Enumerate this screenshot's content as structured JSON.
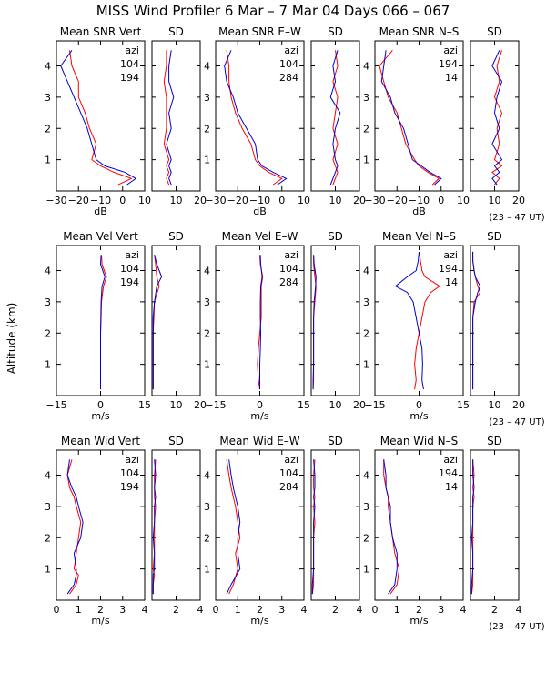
{
  "title": "MISS Wind Profiler    6 Mar –  7 Mar 04 Days 066 – 067",
  "ylabel": "Altitude (km)",
  "time_note": "(23 – 47 UT)",
  "legend_header": "azi",
  "colors": {
    "series_a": "#ff0000",
    "series_b": "#0000cc",
    "axes": "#000000"
  },
  "y_ticks": [
    "1",
    "2",
    "3",
    "4"
  ],
  "chart_data": [
    {
      "type": "line",
      "row": 0,
      "col": 0,
      "kind": "mean",
      "title": "Mean SNR Vert",
      "sd_title": "SD",
      "xlabel": "dB",
      "xlim": [
        -30,
        10
      ],
      "sd_xlim": [
        0,
        20
      ],
      "ylim": [
        0,
        4.8
      ],
      "x_ticks": [
        -30,
        -20,
        -10,
        0,
        10
      ],
      "x_tick_labels": [
        "−30",
        "−20",
        "−10",
        "0",
        "10"
      ],
      "sd_ticks": [
        10,
        20
      ],
      "sd_tick_labels": [
        "10",
        "20"
      ],
      "azimuths": [
        "104",
        "194"
      ],
      "altitude": [
        0.2,
        0.4,
        0.6,
        0.8,
        1.0,
        1.5,
        2.0,
        2.5,
        3.0,
        3.5,
        4.0,
        4.5
      ],
      "series": [
        {
          "name": "104",
          "mean": [
            -2,
            4,
            -4,
            -10,
            -14,
            -12,
            -15,
            -17,
            -20,
            -20,
            -23,
            -24
          ],
          "sd": [
            7,
            6,
            7,
            6,
            7,
            5,
            6,
            6,
            6,
            5,
            6,
            6
          ]
        },
        {
          "name": "194",
          "mean": [
            2,
            6,
            1,
            -8,
            -12,
            -14,
            -16,
            -19,
            -22,
            -25,
            -28,
            -23
          ],
          "sd": [
            8,
            7,
            8,
            7,
            8,
            6,
            8,
            7,
            9,
            7,
            7,
            8
          ]
        }
      ]
    },
    {
      "type": "line",
      "row": 0,
      "col": 1,
      "kind": "mean",
      "title": "Mean SNR E–W",
      "sd_title": "SD",
      "xlabel": "dB",
      "xlim": [
        -30,
        10
      ],
      "sd_xlim": [
        0,
        20
      ],
      "ylim": [
        0,
        4.8
      ],
      "x_ticks": [
        -30,
        -20,
        -10,
        0,
        10
      ],
      "x_tick_labels": [
        "−30",
        "−20",
        "−10",
        "0",
        "10"
      ],
      "sd_ticks": [
        10,
        20
      ],
      "sd_tick_labels": [
        "10",
        "20"
      ],
      "azimuths": [
        "104",
        "284"
      ],
      "altitude": [
        0.2,
        0.4,
        0.6,
        0.8,
        1.0,
        1.5,
        2.0,
        2.5,
        3.0,
        3.5,
        4.0,
        4.5
      ],
      "series": [
        {
          "name": "104",
          "mean": [
            -4,
            0,
            -6,
            -10,
            -12,
            -14,
            -18,
            -21,
            -23,
            -24,
            -24,
            -25
          ],
          "sd": [
            9,
            10,
            11,
            10,
            9,
            11,
            9,
            10,
            11,
            9,
            11,
            10
          ]
        },
        {
          "name": "284",
          "mean": [
            -2,
            2,
            -4,
            -9,
            -11,
            -12,
            -16,
            -20,
            -22,
            -25,
            -26,
            -23
          ],
          "sd": [
            8,
            9,
            10,
            11,
            10,
            9,
            10,
            12,
            8,
            10,
            9,
            11
          ]
        }
      ]
    },
    {
      "type": "line",
      "row": 0,
      "col": 2,
      "kind": "mean",
      "title": "Mean SNR N–S",
      "sd_title": "SD",
      "xlabel": "dB",
      "xlim": [
        -30,
        10
      ],
      "sd_xlim": [
        0,
        20
      ],
      "ylim": [
        0,
        4.8
      ],
      "x_ticks": [
        -30,
        -20,
        -10,
        0,
        10
      ],
      "x_tick_labels": [
        "−30",
        "−20",
        "−10",
        "0",
        "10"
      ],
      "sd_ticks": [
        10,
        20
      ],
      "sd_tick_labels": [
        "10",
        "20"
      ],
      "azimuths": [
        "194",
        "14"
      ],
      "altitude": [
        0.2,
        0.4,
        0.6,
        0.8,
        1.0,
        1.5,
        2.0,
        2.5,
        3.0,
        3.5,
        4.0,
        4.5
      ],
      "series": [
        {
          "name": "194",
          "mean": [
            -4,
            -1,
            -6,
            -10,
            -12,
            -16,
            -18,
            -20,
            -24,
            -26,
            -28,
            -22
          ],
          "sd": [
            10,
            12,
            9,
            13,
            10,
            12,
            11,
            13,
            10,
            12,
            11,
            13
          ]
        },
        {
          "name": "14",
          "mean": [
            -3,
            0,
            -5,
            -9,
            -13,
            -15,
            -17,
            -21,
            -23,
            -27,
            -26,
            -25
          ],
          "sd": [
            11,
            9,
            12,
            10,
            13,
            9,
            12,
            10,
            11,
            13,
            9,
            12
          ]
        }
      ]
    },
    {
      "type": "line",
      "row": 1,
      "col": 0,
      "kind": "mean",
      "title": "Mean Vel Vert",
      "sd_title": "SD",
      "xlabel": "m/s",
      "xlim": [
        -15,
        15
      ],
      "sd_xlim": [
        0,
        20
      ],
      "ylim": [
        0,
        4.8
      ],
      "x_ticks": [
        -15,
        0,
        15
      ],
      "x_tick_labels": [
        "−15",
        "0",
        "15"
      ],
      "sd_ticks": [
        10,
        20
      ],
      "sd_tick_labels": [
        "10",
        "20"
      ],
      "azimuths": [
        "104",
        "194"
      ],
      "altitude": [
        0.2,
        0.5,
        1.0,
        1.5,
        2.0,
        2.5,
        3.0,
        3.5,
        3.8,
        4.2,
        4.5
      ],
      "series": [
        {
          "name": "104",
          "mean": [
            0,
            0,
            0,
            0,
            0,
            0.2,
            0.3,
            1,
            2,
            0.5,
            0.3
          ],
          "sd": [
            0.5,
            0.5,
            0.5,
            0.5,
            0.5,
            0.8,
            1,
            3,
            2,
            1.5,
            1
          ]
        },
        {
          "name": "194",
          "mean": [
            0,
            0,
            0,
            0,
            0,
            0.1,
            0.2,
            0.5,
            1.5,
            0,
            0.2
          ],
          "sd": [
            0.5,
            0.5,
            0.5,
            0.5,
            0.5,
            0.5,
            1,
            2,
            4,
            2,
            1
          ]
        }
      ]
    },
    {
      "type": "line",
      "row": 1,
      "col": 1,
      "kind": "mean",
      "title": "Mean Vel E–W",
      "sd_title": "SD",
      "xlabel": "m/s",
      "xlim": [
        -15,
        15
      ],
      "sd_xlim": [
        0,
        20
      ],
      "ylim": [
        0,
        4.8
      ],
      "x_ticks": [
        -15,
        0,
        15
      ],
      "x_tick_labels": [
        "−15",
        "0",
        "15"
      ],
      "sd_ticks": [
        10,
        20
      ],
      "sd_tick_labels": [
        "10",
        "20"
      ],
      "azimuths": [
        "104",
        "284"
      ],
      "altitude": [
        0.2,
        0.5,
        1.0,
        1.5,
        2.0,
        2.5,
        3.0,
        3.5,
        3.8,
        4.2,
        4.5
      ],
      "series": [
        {
          "name": "104",
          "mean": [
            0,
            -0.5,
            -0.8,
            -0.5,
            0,
            0.5,
            0.5,
            0.5,
            1,
            0.2,
            0
          ],
          "sd": [
            0.8,
            1,
            1,
            1,
            1,
            1,
            1.5,
            2,
            1.5,
            1,
            1
          ]
        },
        {
          "name": "284",
          "mean": [
            0,
            0,
            0,
            0.2,
            0.3,
            0.2,
            0.2,
            0.3,
            0.8,
            0.3,
            0.2
          ],
          "sd": [
            0.8,
            0.8,
            1,
            1,
            1,
            1,
            1.2,
            1.8,
            2,
            1.2,
            1
          ]
        }
      ]
    },
    {
      "type": "line",
      "row": 1,
      "col": 2,
      "kind": "mean",
      "title": "Mean Vel N–S",
      "sd_title": "SD",
      "xlabel": "m/s",
      "xlim": [
        -15,
        15
      ],
      "sd_xlim": [
        0,
        20
      ],
      "ylim": [
        0,
        4.8
      ],
      "x_ticks": [
        -15,
        0,
        15
      ],
      "x_tick_labels": [
        "−15",
        "0",
        "15"
      ],
      "sd_ticks": [
        10,
        20
      ],
      "sd_tick_labels": [
        "10",
        "20"
      ],
      "azimuths": [
        "194",
        "14"
      ],
      "altitude": [
        0.2,
        0.5,
        1.0,
        1.5,
        2.0,
        2.5,
        3.0,
        3.3,
        3.5,
        3.8,
        4.0,
        4.3,
        4.6
      ],
      "series": [
        {
          "name": "194",
          "mean": [
            -1.5,
            -1,
            -1.5,
            -1,
            0,
            1,
            2,
            4,
            7,
            2,
            1,
            0.5,
            0
          ],
          "sd": [
            1,
            1,
            1,
            1,
            1,
            1,
            1.5,
            4,
            3,
            2,
            1.5,
            1,
            1
          ]
        },
        {
          "name": "14",
          "mean": [
            1.5,
            1,
            1.2,
            1,
            0,
            -1,
            -2,
            -4,
            -8,
            -4,
            -1,
            -0.3,
            0
          ],
          "sd": [
            1,
            1,
            1,
            1,
            1,
            1,
            2,
            3,
            4,
            2,
            1.5,
            1,
            1
          ]
        }
      ]
    },
    {
      "type": "line",
      "row": 2,
      "col": 0,
      "kind": "mean",
      "title": "Mean Wid Vert",
      "sd_title": "SD",
      "xlabel": "m/s",
      "xlim": [
        0,
        4
      ],
      "sd_xlim": [
        0,
        4
      ],
      "ylim": [
        0,
        4.8
      ],
      "x_ticks": [
        0,
        1,
        2,
        3,
        4
      ],
      "x_tick_labels": [
        "0",
        "1",
        "2",
        "3",
        "4"
      ],
      "sd_ticks": [
        2,
        4
      ],
      "sd_tick_labels": [
        "2",
        "4"
      ],
      "azimuths": [
        "104",
        "194"
      ],
      "altitude": [
        0.2,
        0.5,
        0.8,
        1.0,
        1.5,
        2.0,
        2.5,
        3.0,
        3.3,
        3.6,
        4.0,
        4.5
      ],
      "series": [
        {
          "name": "104",
          "mean": [
            0.6,
            0.9,
            1.0,
            0.8,
            0.9,
            1.0,
            1.1,
            0.9,
            0.8,
            0.6,
            0.5,
            0.7
          ],
          "sd": [
            0.1,
            0.1,
            0.2,
            0.1,
            0.2,
            0.2,
            0.2,
            0.3,
            0.2,
            0.2,
            0.2,
            0.3
          ]
        },
        {
          "name": "194",
          "mean": [
            0.5,
            0.8,
            0.9,
            0.9,
            0.8,
            1.1,
            1.2,
            1.0,
            0.9,
            0.7,
            0.5,
            0.6
          ],
          "sd": [
            0.1,
            0.1,
            0.1,
            0.2,
            0.2,
            0.1,
            0.2,
            0.2,
            0.3,
            0.2,
            0.3,
            0.2
          ]
        }
      ]
    },
    {
      "type": "line",
      "row": 2,
      "col": 1,
      "kind": "mean",
      "title": "Mean Wid E–W",
      "sd_title": "SD",
      "xlabel": "m/s",
      "xlim": [
        0,
        4
      ],
      "sd_xlim": [
        0,
        4
      ],
      "ylim": [
        0,
        4.8
      ],
      "x_ticks": [
        0,
        1,
        2,
        3,
        4
      ],
      "x_tick_labels": [
        "0",
        "1",
        "2",
        "3",
        "4"
      ],
      "sd_ticks": [
        2,
        4
      ],
      "sd_tick_labels": [
        "2",
        "4"
      ],
      "azimuths": [
        "104",
        "284"
      ],
      "altitude": [
        0.2,
        0.5,
        1.0,
        1.5,
        2.0,
        2.5,
        3.0,
        3.3,
        3.6,
        4.0,
        4.5
      ],
      "series": [
        {
          "name": "104",
          "mean": [
            0.6,
            0.8,
            1.0,
            0.9,
            1.1,
            1.0,
            0.9,
            0.8,
            0.7,
            0.6,
            0.5
          ],
          "sd": [
            0.1,
            0.2,
            0.2,
            0.2,
            0.2,
            0.3,
            0.2,
            0.3,
            0.2,
            0.2,
            0.3
          ]
        },
        {
          "name": "284",
          "mean": [
            0.5,
            0.7,
            1.1,
            1.0,
            1.0,
            1.1,
            1.0,
            0.9,
            0.8,
            0.7,
            0.6
          ],
          "sd": [
            0.1,
            0.1,
            0.2,
            0.2,
            0.2,
            0.2,
            0.3,
            0.2,
            0.3,
            0.3,
            0.2
          ]
        }
      ]
    },
    {
      "type": "line",
      "row": 2,
      "col": 2,
      "kind": "mean",
      "title": "Mean Wid N–S",
      "sd_title": "SD",
      "xlabel": "m/s",
      "xlim": [
        0,
        4
      ],
      "sd_xlim": [
        0,
        4
      ],
      "ylim": [
        0,
        4.8
      ],
      "x_ticks": [
        0,
        1,
        2,
        3,
        4
      ],
      "x_tick_labels": [
        "0",
        "1",
        "2",
        "3",
        "4"
      ],
      "sd_ticks": [
        2,
        4
      ],
      "sd_tick_labels": [
        "2",
        "4"
      ],
      "azimuths": [
        "194",
        "14"
      ],
      "altitude": [
        0.2,
        0.5,
        1.0,
        1.5,
        2.0,
        2.5,
        3.0,
        3.3,
        3.6,
        4.0,
        4.5
      ],
      "series": [
        {
          "name": "194",
          "mean": [
            0.7,
            1.0,
            1.1,
            0.9,
            0.8,
            0.7,
            0.6,
            0.6,
            0.5,
            0.4,
            0.4
          ],
          "sd": [
            0.1,
            0.2,
            0.2,
            0.2,
            0.2,
            0.2,
            0.2,
            0.3,
            0.2,
            0.3,
            0.2
          ]
        },
        {
          "name": "14",
          "mean": [
            0.6,
            0.9,
            1.0,
            1.0,
            0.8,
            0.7,
            0.7,
            0.6,
            0.5,
            0.5,
            0.4
          ],
          "sd": [
            0.1,
            0.1,
            0.2,
            0.2,
            0.1,
            0.2,
            0.2,
            0.2,
            0.3,
            0.2,
            0.2
          ]
        }
      ]
    }
  ]
}
